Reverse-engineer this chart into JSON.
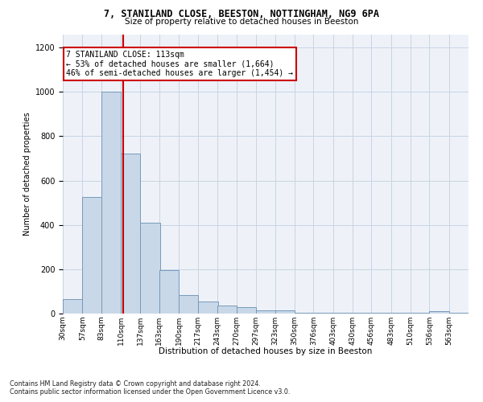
{
  "title1": "7, STANILAND CLOSE, BEESTON, NOTTINGHAM, NG9 6PA",
  "title2": "Size of property relative to detached houses in Beeston",
  "xlabel": "Distribution of detached houses by size in Beeston",
  "ylabel": "Number of detached properties",
  "footer1": "Contains HM Land Registry data © Crown copyright and database right 2024.",
  "footer2": "Contains public sector information licensed under the Open Government Licence v3.0.",
  "bar_color": "#c8d8e8",
  "bar_edge_color": "#7799bb",
  "annotation_line1": "7 STANILAND CLOSE: 113sqm",
  "annotation_line2": "← 53% of detached houses are smaller (1,664)",
  "annotation_line3": "46% of semi-detached houses are larger (1,454) →",
  "annotation_box_color": "#ffffff",
  "annotation_box_edge": "#cc0000",
  "vline_x": 113,
  "vline_color": "#cc0000",
  "categories": [
    "30sqm",
    "57sqm",
    "83sqm",
    "110sqm",
    "137sqm",
    "163sqm",
    "190sqm",
    "217sqm",
    "243sqm",
    "270sqm",
    "297sqm",
    "323sqm",
    "350sqm",
    "376sqm",
    "403sqm",
    "430sqm",
    "456sqm",
    "483sqm",
    "510sqm",
    "536sqm",
    "563sqm"
  ],
  "bin_starts": [
    30,
    57,
    83,
    110,
    137,
    163,
    190,
    217,
    243,
    270,
    297,
    323,
    350,
    376,
    403,
    430,
    456,
    483,
    510,
    536,
    563
  ],
  "bin_width": 27,
  "values": [
    65,
    525,
    1000,
    720,
    410,
    195,
    85,
    55,
    35,
    30,
    15,
    15,
    5,
    5,
    5,
    5,
    5,
    5,
    5,
    10,
    5
  ],
  "ylim": [
    0,
    1260
  ],
  "yticks": [
    0,
    200,
    400,
    600,
    800,
    1000,
    1200
  ],
  "background_color": "#eef2f8",
  "grid_color": "#c8d4e4",
  "fig_width": 6.0,
  "fig_height": 5.0,
  "dpi": 100
}
